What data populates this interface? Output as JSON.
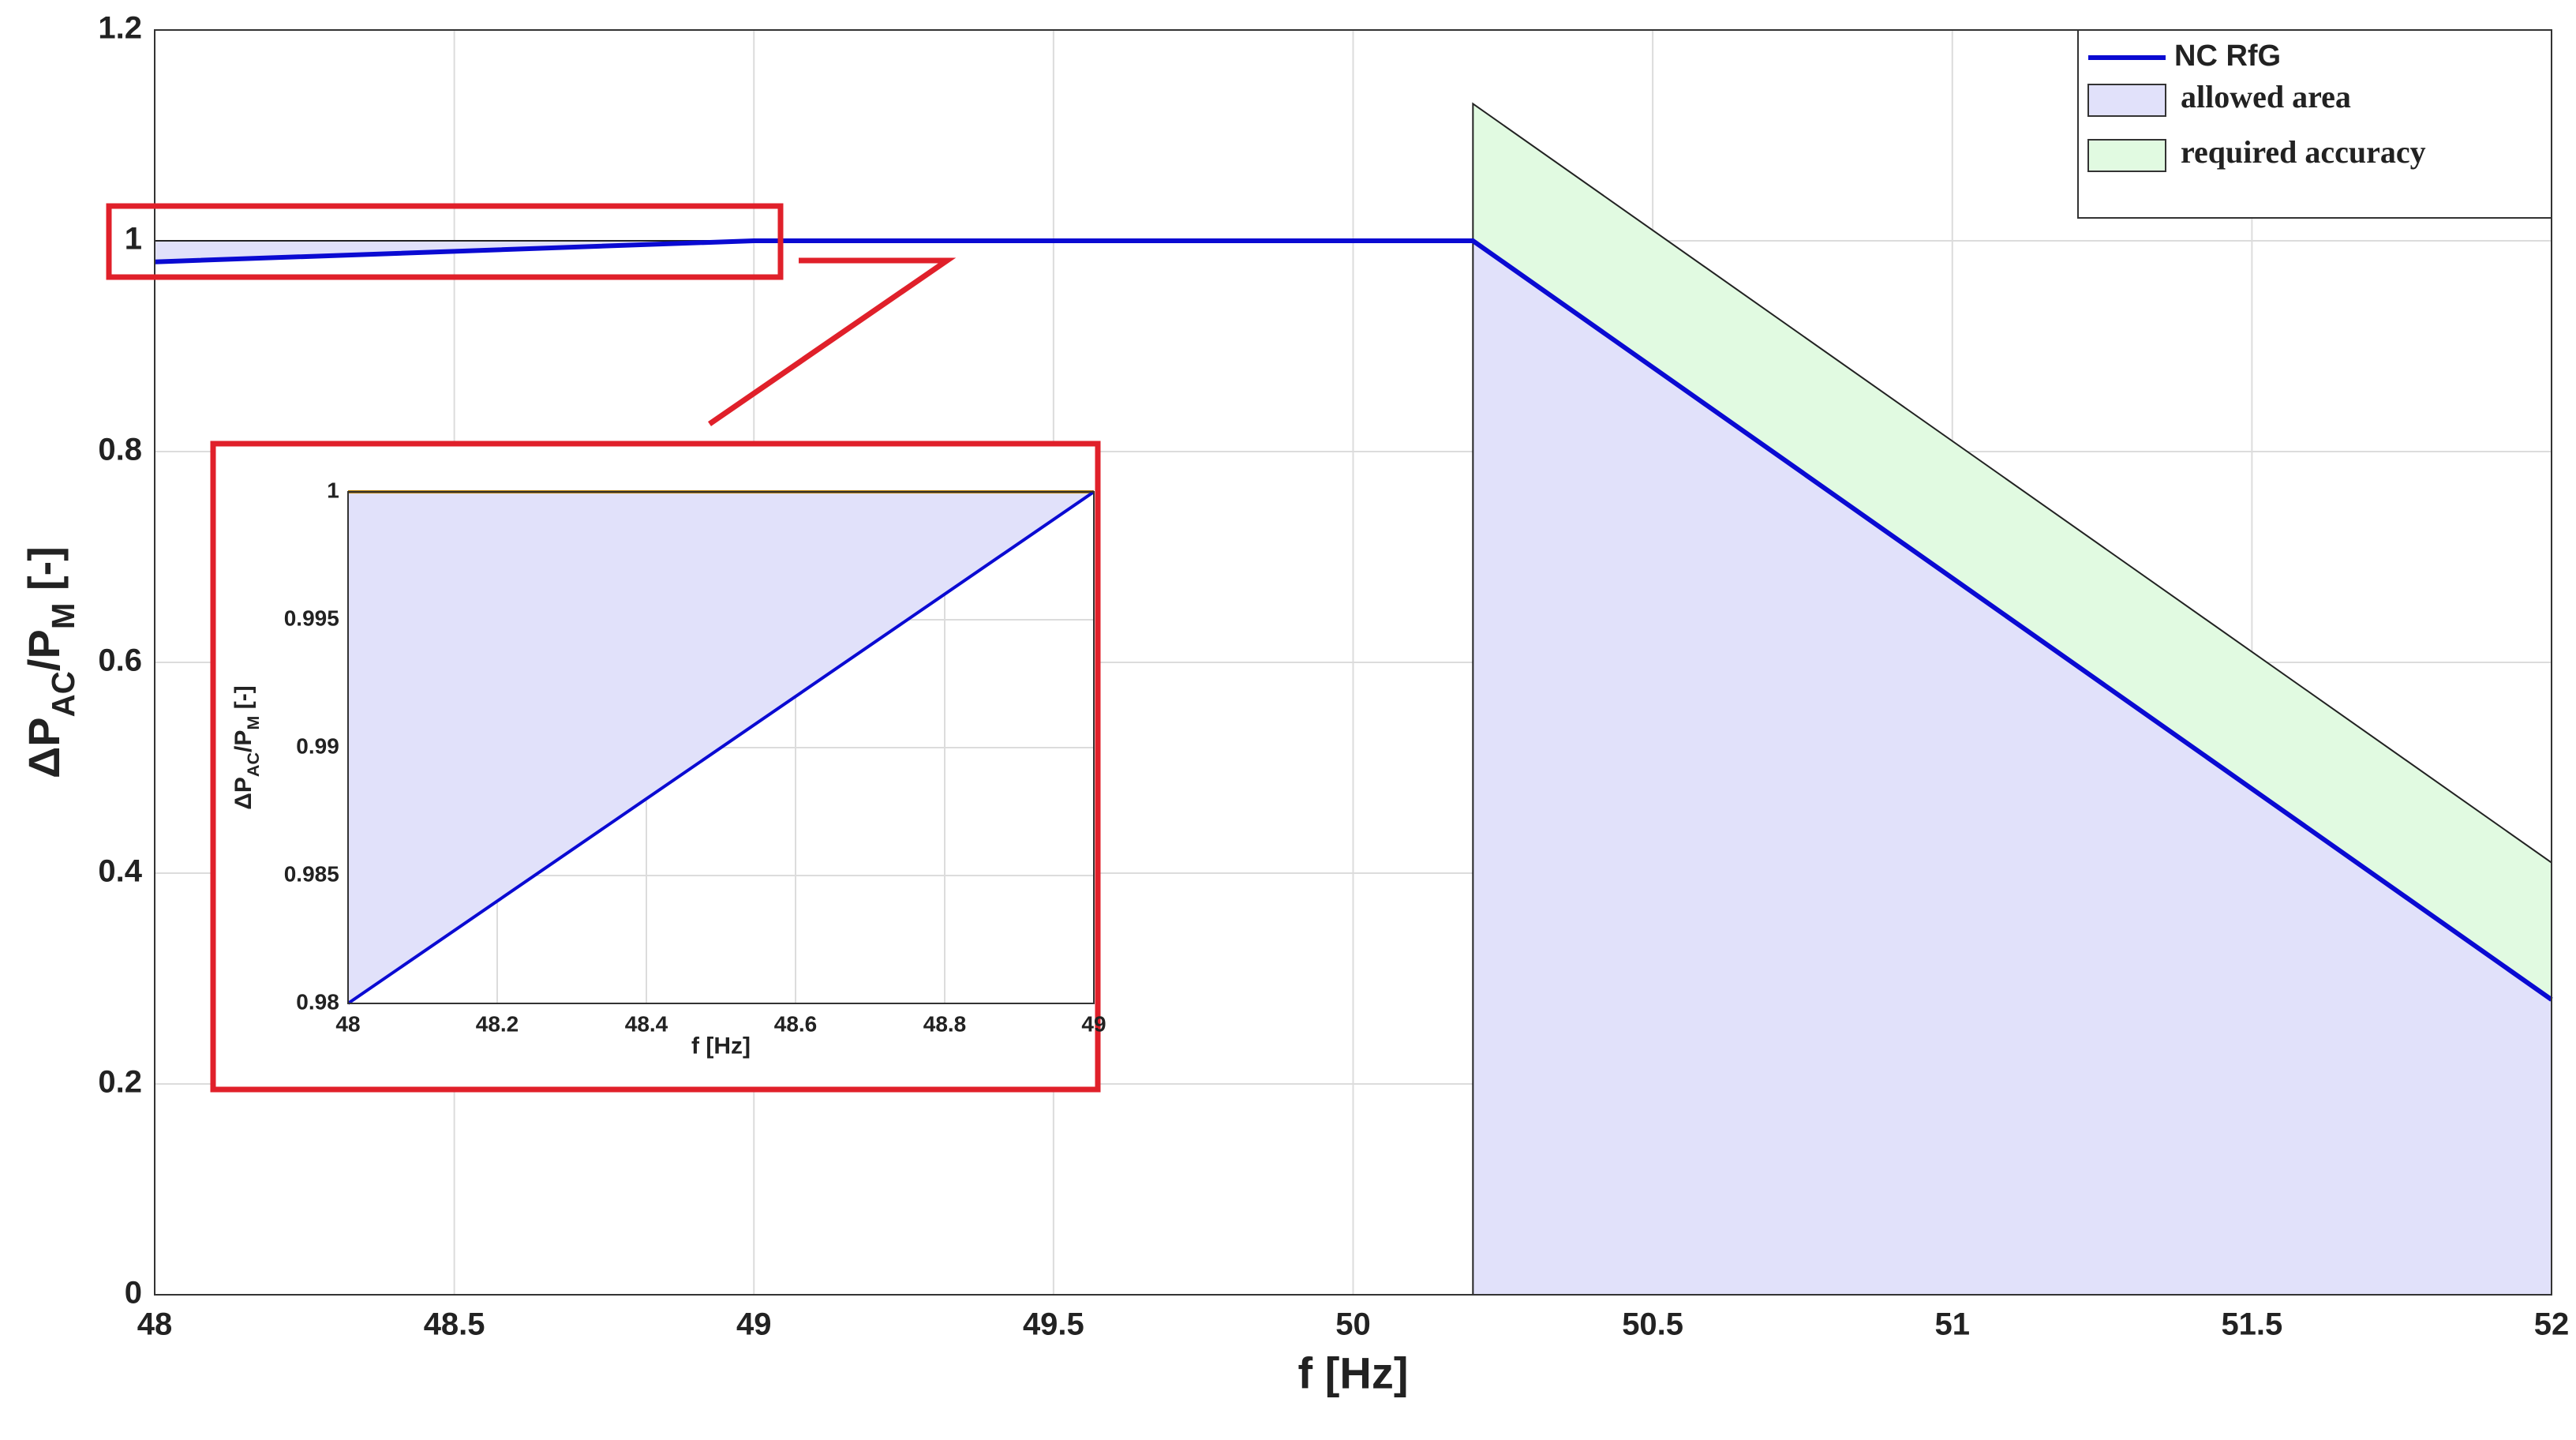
{
  "chart_data": [
    {
      "type": "line",
      "xlabel": "f [Hz]",
      "ylabel": [
        "ΔP",
        "AC",
        "/P",
        "M",
        " [-]"
      ],
      "xlim": [
        48,
        52
      ],
      "ylim": [
        0,
        1.2
      ],
      "xticks": [
        48,
        48.5,
        49,
        49.5,
        50,
        50.5,
        51,
        51.5,
        52
      ],
      "yticks": [
        0,
        0.2,
        0.4,
        0.6,
        0.8,
        1,
        1.2
      ],
      "grid": true,
      "legend": "upper right",
      "areas": [
        {
          "name": "allowed area",
          "color": "#e1e1fa",
          "pieces": [
            {
              "x": [
                48,
                49
              ],
              "lower": [
                0.98,
                1
              ],
              "upper": [
                1,
                1
              ]
            },
            {
              "x": [
                50.2,
                52
              ],
              "lower": [
                0,
                0
              ],
              "upper": [
                1,
                0.28
              ]
            }
          ]
        },
        {
          "name": "required accuracy",
          "color": "#e1fae1",
          "pieces": [
            {
              "x": [
                50.2,
                52
              ],
              "lower": [
                1,
                0.28
              ],
              "upper": [
                1.13,
                0.41
              ]
            }
          ]
        }
      ],
      "series": [
        {
          "name": "NC RfG",
          "color": "#0a0ad2",
          "x": [
            48,
            49,
            50.2,
            52
          ],
          "values": [
            0.98,
            1,
            1,
            0.28
          ]
        }
      ]
    },
    {
      "type": "line",
      "xlabel": "f [Hz]",
      "ylabel": [
        "ΔP",
        "AC",
        "/P",
        "M",
        " [-]"
      ],
      "xlim": [
        48,
        49
      ],
      "ylim": [
        0.98,
        1
      ],
      "xticks": [
        48,
        48.2,
        48.4,
        48.6,
        48.8,
        49
      ],
      "yticks": [
        0.98,
        0.985,
        0.99,
        0.995,
        1
      ],
      "grid": true,
      "areas": [
        {
          "color": "#e1e1fa",
          "edgecolor": "#b07a00",
          "pieces": [
            {
              "x": [
                48,
                49
              ],
              "lower": [
                0.98,
                1
              ],
              "upper": [
                1,
                1
              ]
            }
          ]
        }
      ],
      "series": [
        {
          "color": "#0a0ad2",
          "x": [
            48,
            49
          ],
          "values": [
            0.98,
            1
          ]
        }
      ]
    }
  ]
}
